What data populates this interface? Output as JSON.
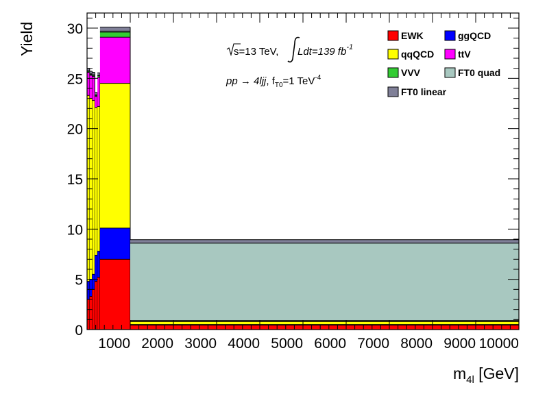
{
  "chart_data": {
    "type": "stacked-histogram",
    "xlabel": {
      "main": "m",
      "sub": "4l",
      "unit": " [GeV]"
    },
    "ylabel": "Yield",
    "xlim": [
      0,
      10000
    ],
    "ylim": [
      0,
      31.5
    ],
    "xticks": [
      1000,
      2000,
      3000,
      4000,
      5000,
      6000,
      7000,
      8000,
      9000,
      10000
    ],
    "yticks": [
      0,
      5,
      10,
      15,
      20,
      25,
      30
    ],
    "annotations": {
      "line1_pre": "s=13 TeV, ",
      "line1_lumi": "Ldt=139 fb",
      "line1_lumi_sup": "-1",
      "line2_proc": "pp → 4ljj",
      "line2_coup": ", f",
      "line2_coup_sub": "T0",
      "line2_val": "=1 TeV",
      "line2_val_sup": "-4"
    },
    "legend": [
      {
        "label": "EWK",
        "color": "#ff0000"
      },
      {
        "label": "ggQCD",
        "color": "#0000ff"
      },
      {
        "label": "qqQCD",
        "color": "#ffff00"
      },
      {
        "label": "ttV",
        "color": "#ff00ff"
      },
      {
        "label": "VVV",
        "color": "#33cc33"
      },
      {
        "label": "FT0 quad",
        "color": "#a8c8c0"
      },
      {
        "label": "FT0 linear",
        "color": "#808098"
      }
    ],
    "stack_order": [
      "EWK",
      "ggQCD",
      "qqQCD",
      "ttV",
      "VVV",
      "FT0 quad",
      "FT0 linear"
    ],
    "bins": [
      {
        "x0": 0,
        "x1": 60,
        "values": [
          3.0,
          1.8,
          18.5,
          2.3,
          0.1,
          0.05,
          0.25
        ]
      },
      {
        "x0": 60,
        "x1": 120,
        "values": [
          3.3,
          1.7,
          18.0,
          2.3,
          0.1,
          0.05,
          0.25
        ]
      },
      {
        "x0": 120,
        "x1": 180,
        "values": [
          4.0,
          1.5,
          17.3,
          2.4,
          0.1,
          0.05,
          0.25
        ]
      },
      {
        "x0": 180,
        "x1": 240,
        "values": [
          4.8,
          2.6,
          14.7,
          1.1,
          0.1,
          0.05,
          0.25
        ]
      },
      {
        "x0": 240,
        "x1": 300,
        "values": [
          5.2,
          2.6,
          14.4,
          2.9,
          0.15,
          0.05,
          0.25
        ]
      },
      {
        "x0": 300,
        "x1": 1000,
        "values": [
          7.0,
          3.1,
          14.4,
          4.6,
          0.5,
          0.1,
          0.4
        ]
      },
      {
        "x0": 1000,
        "x1": 10000,
        "values": [
          0.45,
          0.05,
          0.3,
          0.05,
          0.05,
          7.7,
          0.35
        ]
      }
    ]
  }
}
